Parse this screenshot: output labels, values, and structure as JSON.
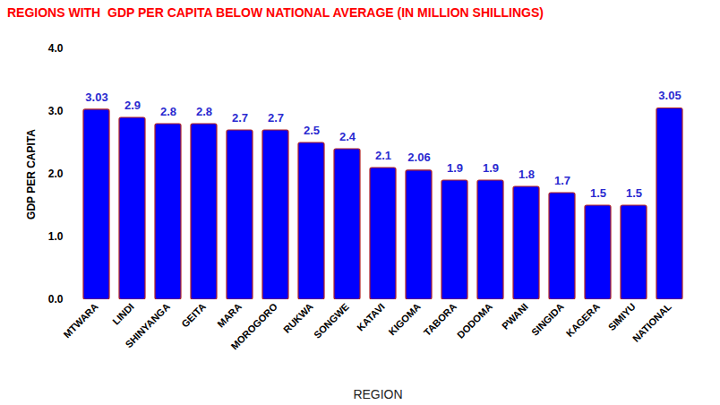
{
  "chart_data": {
    "type": "bar",
    "title": "REGIONS WITH  GDP PER CAPITA BELOW NATIONAL AVERAGE (IN MILLION SHILLINGS)",
    "x_label": "REGION",
    "y_label": "GDP PER CAPITA",
    "categories": [
      "MTWARA",
      "LINDI",
      "SHINYANGA",
      "GEITA",
      "MARA",
      "MOROGORO",
      "RUKWA",
      "SONGWE",
      "KATAVI",
      "KIGOMA",
      "TABORA",
      "DODOMA",
      "PWANI",
      "SINGIDA",
      "KAGERA",
      "SIMIYU",
      "NATIONAL"
    ],
    "values": [
      3.03,
      2.9,
      2.8,
      2.8,
      2.7,
      2.7,
      2.5,
      2.4,
      2.1,
      2.06,
      1.9,
      1.9,
      1.8,
      1.7,
      1.5,
      1.5,
      3.05
    ],
    "color": "#0000ff",
    "ylim": [
      0,
      4
    ],
    "yticks": [
      0,
      1,
      2,
      3,
      4
    ],
    "grid": false,
    "data_labels": true
  }
}
